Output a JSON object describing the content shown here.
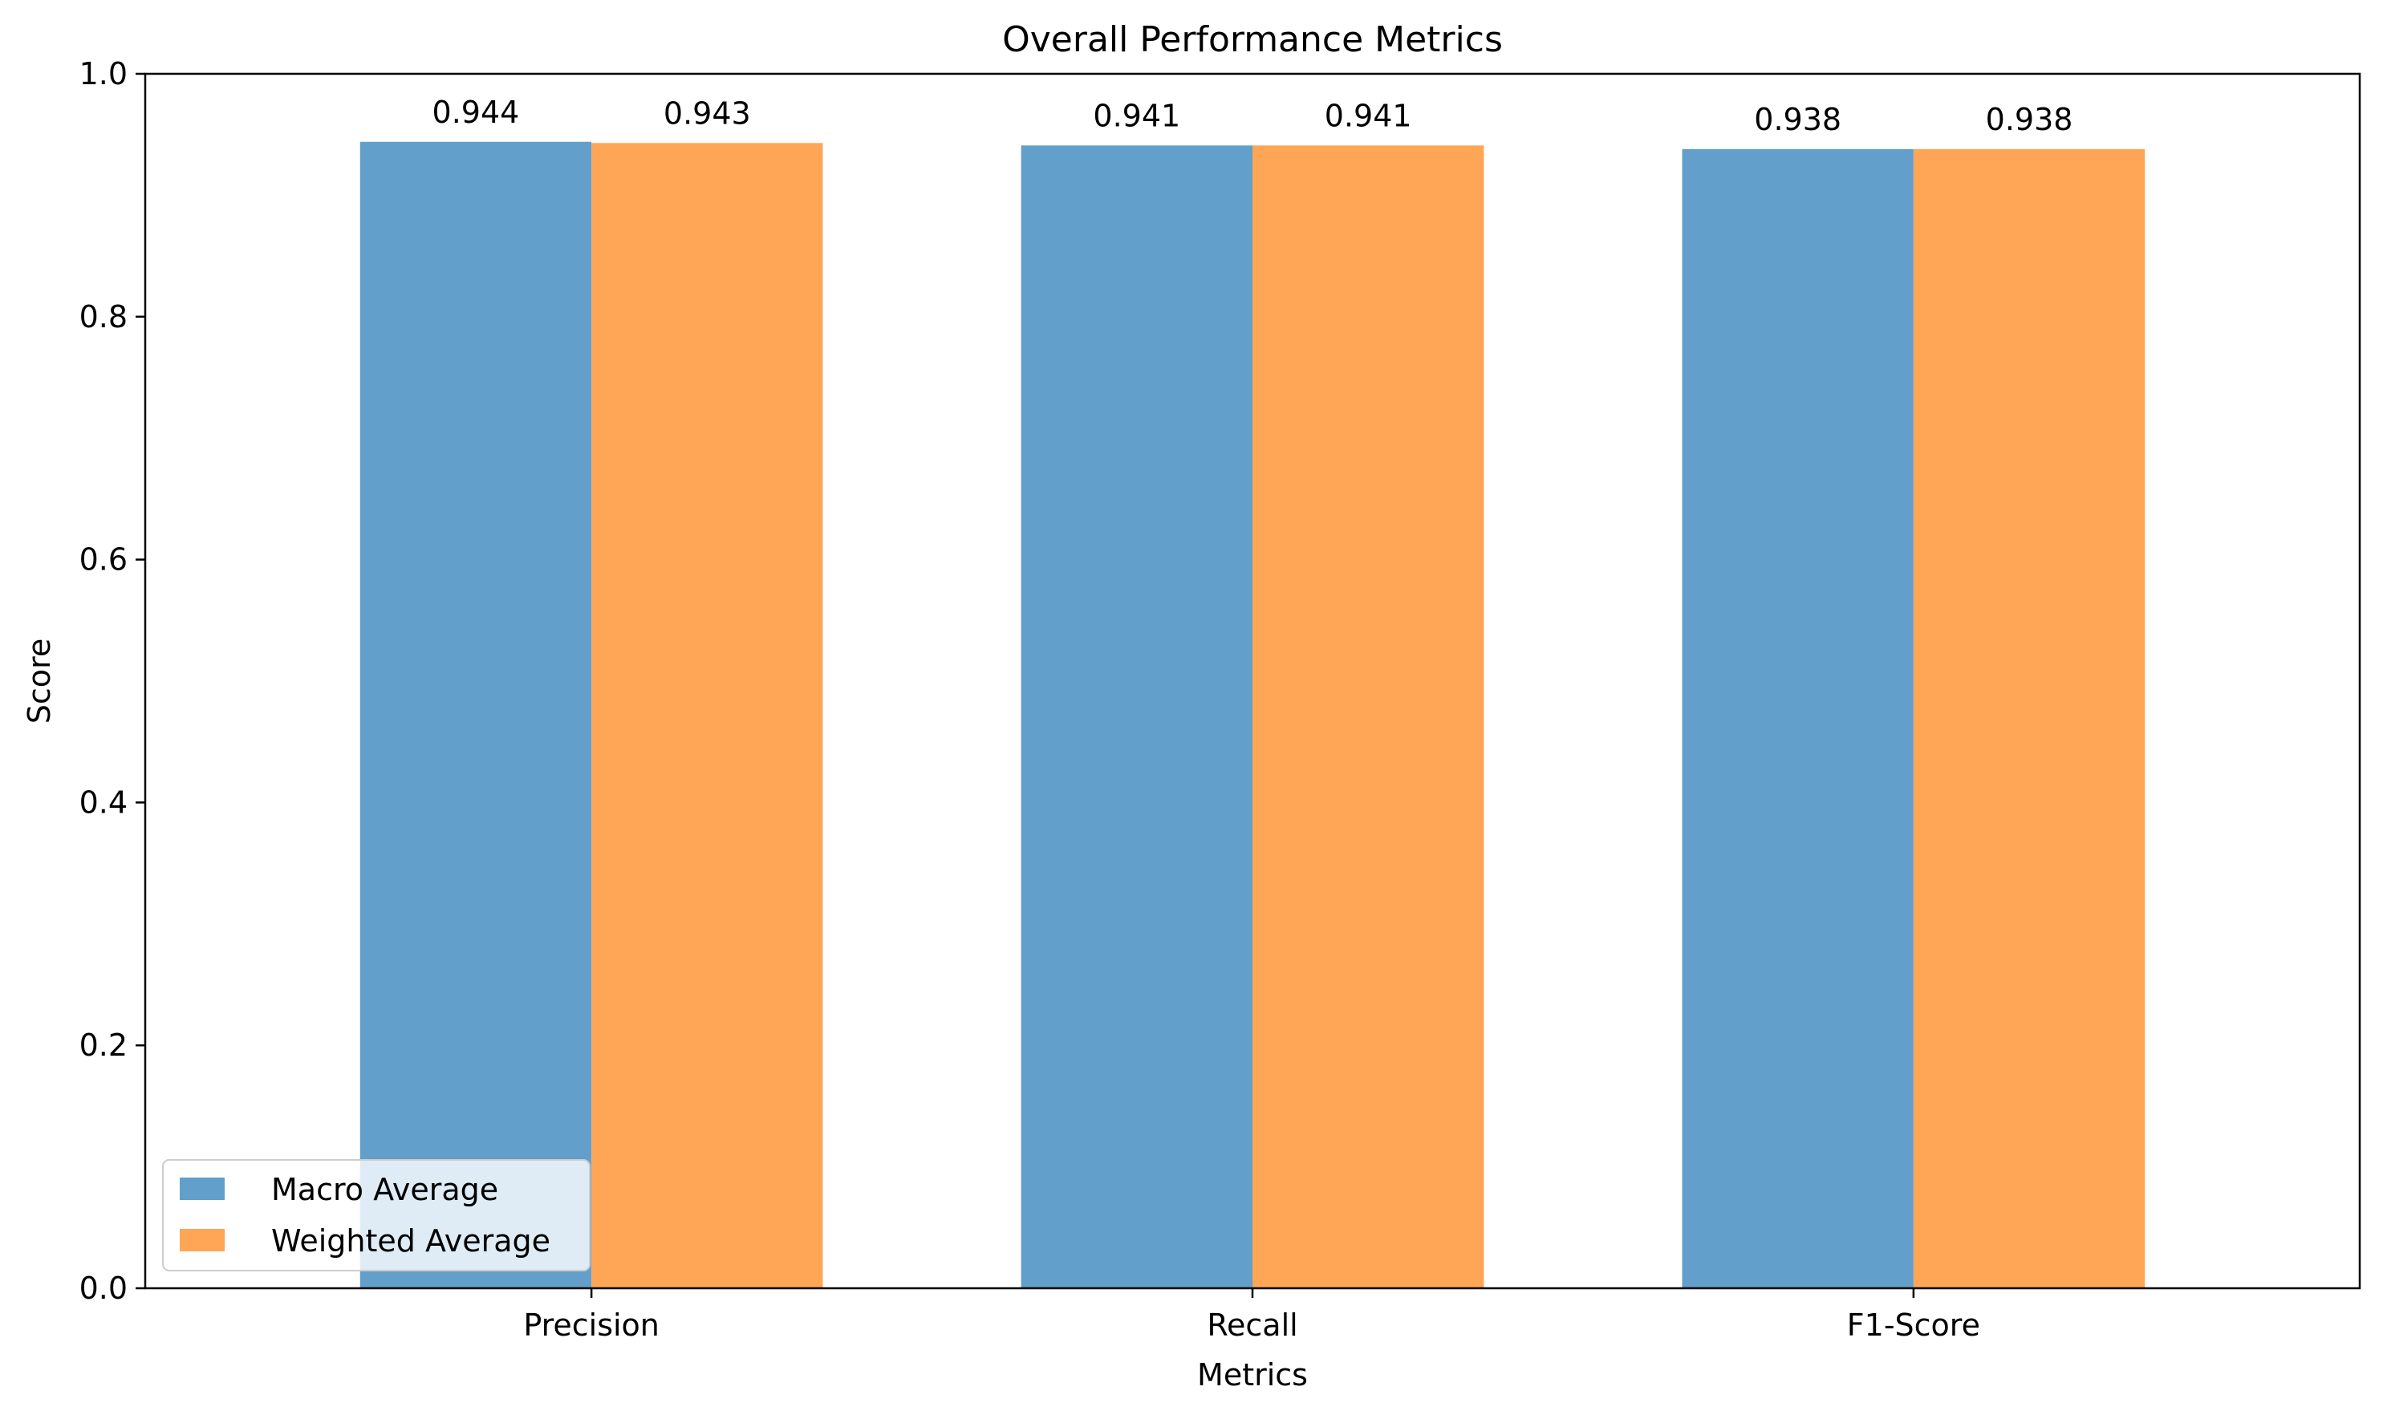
{
  "chart_data": {
    "type": "bar",
    "title": "Overall Performance Metrics",
    "xlabel": "Metrics",
    "ylabel": "Score",
    "ylim": [
      0,
      1.0
    ],
    "yticks": [
      "0.0",
      "0.2",
      "0.4",
      "0.6",
      "0.8",
      "1.0"
    ],
    "categories": [
      "Precision",
      "Recall",
      "F1-Score"
    ],
    "series": [
      {
        "name": "Macro Average",
        "color": "#629fca",
        "values": [
          0.944,
          0.941,
          0.938
        ],
        "labels": [
          "0.944",
          "0.941",
          "0.938"
        ]
      },
      {
        "name": "Weighted Average",
        "color": "#ffa556",
        "values": [
          0.943,
          0.941,
          0.938
        ],
        "labels": [
          "0.943",
          "0.941",
          "0.938"
        ]
      }
    ],
    "legend_position": "lower-left",
    "grid": false
  }
}
